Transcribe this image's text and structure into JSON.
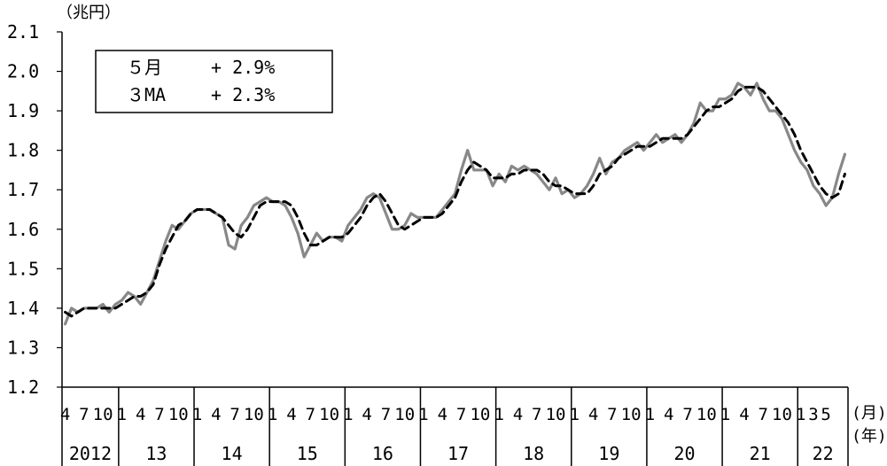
{
  "chart_data": {
    "type": "line",
    "y_unit": "（兆円）",
    "x_month_unit": "(月)",
    "x_year_unit": "(年)",
    "ylim": [
      1.2,
      2.1
    ],
    "y_ticks": [
      "1.2",
      "1.3",
      "1.4",
      "1.5",
      "1.6",
      "1.7",
      "1.8",
      "1.9",
      "2.0",
      "2.1"
    ],
    "month_tick_labels": [
      "4",
      "7",
      "10",
      "1",
      "3",
      "5"
    ],
    "years": [
      "2012",
      "13",
      "14",
      "15",
      "16",
      "17",
      "18",
      "19",
      "20",
      "21",
      "22"
    ],
    "legend": [
      {
        "label": "５月",
        "value": "+ 2.9%"
      },
      {
        "label": "３MA",
        "value": "+ 2.3%"
      }
    ],
    "x_start": "2012-04",
    "series": [
      {
        "style": "solid",
        "color": "#888888",
        "values": [
          1.36,
          1.4,
          1.39,
          1.4,
          1.4,
          1.4,
          1.41,
          1.39,
          1.41,
          1.42,
          1.44,
          1.43,
          1.41,
          1.44,
          1.47,
          1.52,
          1.57,
          1.61,
          1.6,
          1.62,
          1.64,
          1.65,
          1.65,
          1.65,
          1.64,
          1.63,
          1.56,
          1.55,
          1.61,
          1.63,
          1.66,
          1.67,
          1.68,
          1.67,
          1.67,
          1.66,
          1.63,
          1.59,
          1.53,
          1.56,
          1.59,
          1.57,
          1.58,
          1.58,
          1.57,
          1.61,
          1.63,
          1.65,
          1.68,
          1.69,
          1.68,
          1.64,
          1.6,
          1.6,
          1.61,
          1.64,
          1.63,
          1.63,
          1.63,
          1.63,
          1.65,
          1.67,
          1.69,
          1.75,
          1.8,
          1.75,
          1.75,
          1.75,
          1.71,
          1.74,
          1.72,
          1.76,
          1.75,
          1.76,
          1.75,
          1.74,
          1.72,
          1.7,
          1.73,
          1.69,
          1.7,
          1.68,
          1.69,
          1.71,
          1.74,
          1.78,
          1.74,
          1.77,
          1.78,
          1.8,
          1.81,
          1.82,
          1.8,
          1.82,
          1.84,
          1.82,
          1.83,
          1.84,
          1.82,
          1.84,
          1.87,
          1.92,
          1.9,
          1.9,
          1.93,
          1.93,
          1.94,
          1.97,
          1.96,
          1.94,
          1.97,
          1.93,
          1.9,
          1.9,
          1.88,
          1.84,
          1.8,
          1.77,
          1.75,
          1.71,
          1.69,
          1.66,
          1.68,
          1.74,
          1.79
        ]
      },
      {
        "style": "dashed",
        "color": "#000000",
        "values": [
          1.39,
          1.38,
          1.39,
          1.4,
          1.4,
          1.4,
          1.4,
          1.4,
          1.4,
          1.41,
          1.42,
          1.43,
          1.43,
          1.44,
          1.46,
          1.51,
          1.55,
          1.58,
          1.61,
          1.62,
          1.64,
          1.65,
          1.65,
          1.65,
          1.64,
          1.63,
          1.61,
          1.59,
          1.58,
          1.6,
          1.63,
          1.66,
          1.67,
          1.67,
          1.67,
          1.67,
          1.66,
          1.63,
          1.59,
          1.56,
          1.56,
          1.57,
          1.58,
          1.58,
          1.58,
          1.59,
          1.61,
          1.63,
          1.66,
          1.68,
          1.69,
          1.67,
          1.64,
          1.61,
          1.6,
          1.61,
          1.62,
          1.63,
          1.63,
          1.63,
          1.64,
          1.66,
          1.68,
          1.72,
          1.75,
          1.77,
          1.76,
          1.75,
          1.73,
          1.73,
          1.73,
          1.74,
          1.74,
          1.75,
          1.75,
          1.75,
          1.74,
          1.72,
          1.71,
          1.71,
          1.7,
          1.69,
          1.69,
          1.69,
          1.71,
          1.74,
          1.75,
          1.76,
          1.78,
          1.79,
          1.8,
          1.81,
          1.81,
          1.81,
          1.82,
          1.83,
          1.83,
          1.83,
          1.83,
          1.84,
          1.86,
          1.88,
          1.9,
          1.91,
          1.91,
          1.92,
          1.93,
          1.95,
          1.96,
          1.96,
          1.96,
          1.95,
          1.93,
          1.91,
          1.89,
          1.87,
          1.84,
          1.8,
          1.77,
          1.74,
          1.71,
          1.69,
          1.68,
          1.69,
          1.74
        ]
      }
    ]
  }
}
